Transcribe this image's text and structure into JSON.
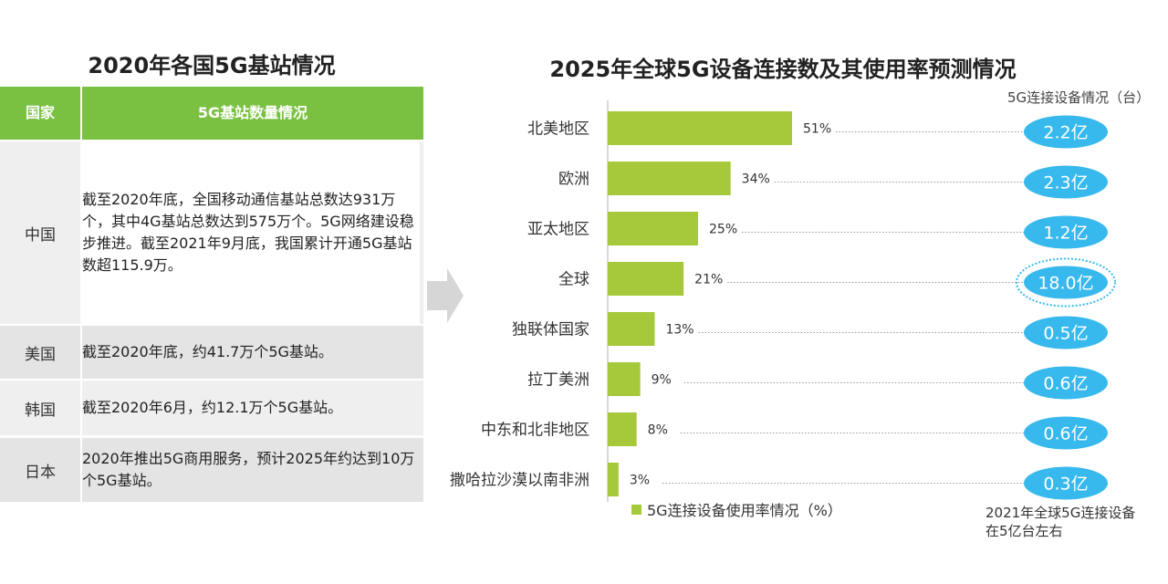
{
  "left": {
    "title": "2020年各国5G基站情况",
    "headers": {
      "country": "国家",
      "info": "5G基站数量情况"
    },
    "rows": [
      {
        "country": "中国",
        "text": "截至2020年底，全国移动通信基站总数达931万个，其中4G基站总数达到575万个。5G网络建设稳步推进。截至2021年9月底，我国累计开通5G基站数超115.9万。"
      },
      {
        "country": "美国",
        "text": "截至2020年底，约41.7万个5G基站。"
      },
      {
        "country": "韩国",
        "text": "截至2020年6月，约12.1万个5G基站。"
      },
      {
        "country": "日本",
        "text": "2020年推出5G商用服务，预计2025年约达到10万个5G基站。"
      }
    ]
  },
  "right": {
    "title": "2025年全球5G设备连接数及其使用率预测情况",
    "subtitle": "5G连接设备情况（台）",
    "legend": "5G连接设备使用率情况（%）",
    "footnote": "2021年全球5G连接设备在5亿台左右"
  },
  "colors": {
    "table_header": "#7ac142",
    "row_light": "#efefef",
    "row_dark": "#e4e4e4",
    "bar": "#a5c93a",
    "badge": "#37b9ee",
    "badge_text": "#ffffff",
    "arrow": "#d6d6d6"
  },
  "chart_data": {
    "type": "bar",
    "orientation": "horizontal",
    "categories": [
      "北美地区",
      "欧洲",
      "亚太地区",
      "全球",
      "独联体国家",
      "拉丁美洲",
      "中东和北非地区",
      "撒哈拉沙漠以南非洲"
    ],
    "series": [
      {
        "name": "5G连接设备使用率情况（%）",
        "values": [
          51,
          34,
          25,
          21,
          13,
          9,
          8,
          3
        ],
        "value_labels": [
          "51%",
          "34%",
          "25%",
          "21%",
          "13%",
          "9%",
          "8%",
          "3%"
        ]
      },
      {
        "name": "5G连接设备情况（台）",
        "values": [
          2.2,
          2.3,
          1.2,
          18.0,
          0.5,
          0.6,
          0.6,
          0.3
        ],
        "value_labels": [
          "2.2亿",
          "2.3亿",
          "1.2亿",
          "18.0亿",
          "0.5亿",
          "0.6亿",
          "0.6亿",
          "0.3亿"
        ]
      }
    ],
    "highlight_category": "全球",
    "xlim": [
      0,
      51
    ]
  }
}
